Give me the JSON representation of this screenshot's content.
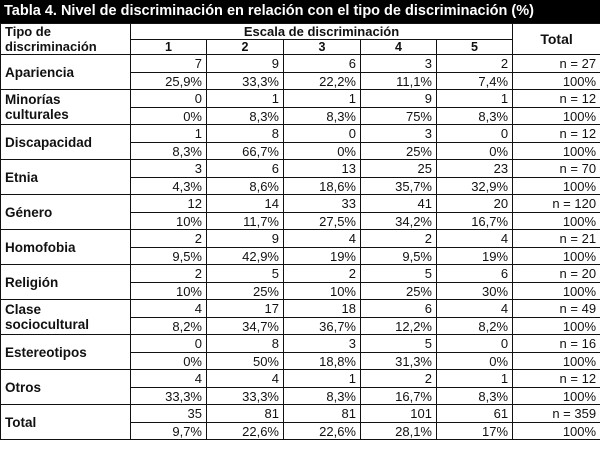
{
  "title": "Tabla 4. Nivel de discriminación en relación con el tipo de discriminación (%)",
  "header": {
    "type_label": "Tipo de discriminación",
    "scale_label": "Escala de discriminación",
    "scale_cols": [
      "1",
      "2",
      "3",
      "4",
      "5"
    ],
    "total_label": "Total"
  },
  "rows": [
    {
      "label": "Apariencia",
      "counts": [
        "7",
        "9",
        "6",
        "3",
        "2"
      ],
      "pcts": [
        "25,9%",
        "33,3%",
        "22,2%",
        "11,1%",
        "7,4%"
      ],
      "n": "n = 27",
      "total_pct": "100%"
    },
    {
      "label": "Minorías culturales",
      "counts": [
        "0",
        "1",
        "1",
        "9",
        "1"
      ],
      "pcts": [
        "0%",
        "8,3%",
        "8,3%",
        "75%",
        "8,3%"
      ],
      "n": "n = 12",
      "total_pct": "100%"
    },
    {
      "label": "Discapacidad",
      "counts": [
        "1",
        "8",
        "0",
        "3",
        "0"
      ],
      "pcts": [
        "8,3%",
        "66,7%",
        "0%",
        "25%",
        "0%"
      ],
      "n": "n = 12",
      "total_pct": "100%"
    },
    {
      "label": "Etnia",
      "counts": [
        "3",
        "6",
        "13",
        "25",
        "23"
      ],
      "pcts": [
        "4,3%",
        "8,6%",
        "18,6%",
        "35,7%",
        "32,9%"
      ],
      "n": "n = 70",
      "total_pct": "100%"
    },
    {
      "label": "Género",
      "counts": [
        "12",
        "14",
        "33",
        "41",
        "20"
      ],
      "pcts": [
        "10%",
        "11,7%",
        "27,5%",
        "34,2%",
        "16,7%"
      ],
      "n": "n = 120",
      "total_pct": "100%"
    },
    {
      "label": "Homofobia",
      "counts": [
        "2",
        "9",
        "4",
        "2",
        "4"
      ],
      "pcts": [
        "9,5%",
        "42,9%",
        "19%",
        "9,5%",
        "19%"
      ],
      "n": "n = 21",
      "total_pct": "100%"
    },
    {
      "label": "Religión",
      "counts": [
        "2",
        "5",
        "2",
        "5",
        "6"
      ],
      "pcts": [
        "10%",
        "25%",
        "10%",
        "25%",
        "30%"
      ],
      "n": "n = 20",
      "total_pct": "100%"
    },
    {
      "label": "Clase sociocultural",
      "counts": [
        "4",
        "17",
        "18",
        "6",
        "4"
      ],
      "pcts": [
        "8,2%",
        "34,7%",
        "36,7%",
        "12,2%",
        "8,2%"
      ],
      "n": "n = 49",
      "total_pct": "100%"
    },
    {
      "label": "Estereotipos",
      "counts": [
        "0",
        "8",
        "3",
        "5",
        "0"
      ],
      "pcts": [
        "0%",
        "50%",
        "18,8%",
        "31,3%",
        "0%"
      ],
      "n": "n = 16",
      "total_pct": "100%"
    },
    {
      "label": "Otros",
      "counts": [
        "4",
        "4",
        "1",
        "2",
        "1"
      ],
      "pcts": [
        "33,3%",
        "33,3%",
        "8,3%",
        "16,7%",
        "8,3%"
      ],
      "n": "n = 12",
      "total_pct": "100%"
    },
    {
      "label": "Total",
      "counts": [
        "35",
        "81",
        "81",
        "101",
        "61"
      ],
      "pcts": [
        "9,7%",
        "22,6%",
        "22,6%",
        "28,1%",
        "17%"
      ],
      "n": "n = 359",
      "total_pct": "100%"
    }
  ]
}
